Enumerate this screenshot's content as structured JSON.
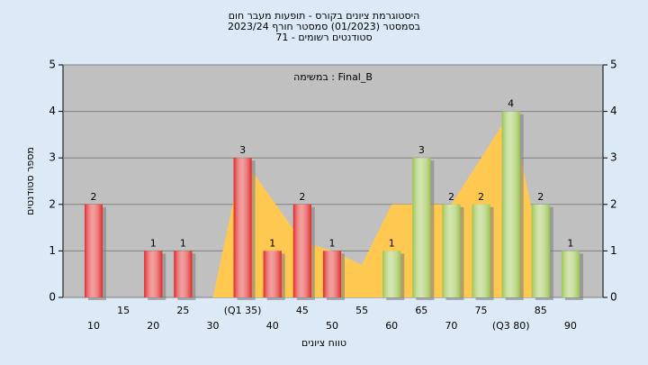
{
  "chart_data": {
    "type": "bar",
    "title": "היסטוגרמת ציונים בקורס - תופעות מעבר חום",
    "subtitle": "בסמסטר  (01/2023)  סמסטר חורף 2023/24",
    "subtitle2": "סטודנטים רשומים - 71",
    "annotation": "במשימה : Final_B",
    "x_label": "טווח ציונים",
    "y_label": "מספר סטודנטים",
    "categories": [
      "10",
      "15",
      "20",
      "25",
      "30",
      "(Q1 35)",
      "40",
      "45",
      "50",
      "55",
      "60",
      "65",
      "70",
      "75",
      "(Q3 80)",
      "85",
      "90"
    ],
    "values": [
      2,
      0,
      1,
      1,
      0,
      3,
      1,
      2,
      1,
      0,
      1,
      3,
      2,
      2,
      4,
      2,
      1
    ],
    "colors": [
      "#e02828",
      "#e02828",
      "#e02828",
      "#e02828",
      "#e02828",
      "#e02828",
      "#e02828",
      "#e02828",
      "#e02828",
      "#e02828",
      "#9cc451",
      "#9cc451",
      "#9cc451",
      "#9cc451",
      "#9cc451",
      "#9cc451",
      "#9cc451"
    ],
    "area": {
      "color": "#ffc850",
      "values": [
        null,
        null,
        null,
        null,
        0,
        3,
        2.1,
        1.2,
        1,
        0.7,
        2,
        2,
        2,
        3,
        4,
        1,
        null
      ]
    },
    "ylim": [
      0,
      5
    ],
    "yticks": [
      0,
      1,
      2,
      3,
      4,
      5
    ],
    "y2lim": [
      0,
      5
    ],
    "y2ticks": [
      0,
      1,
      2,
      3,
      4,
      5
    ],
    "grid": true
  }
}
